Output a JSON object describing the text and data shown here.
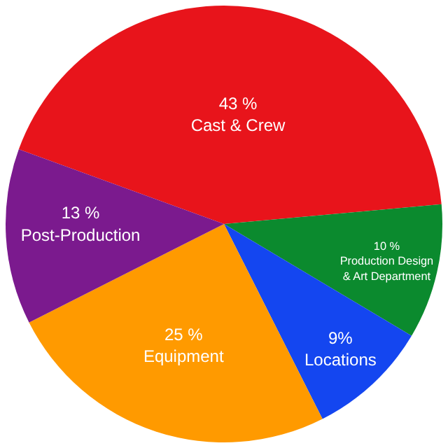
{
  "chart_data": {
    "type": "pie",
    "categories": [
      "Cast & Crew",
      "Production Design & Art Department",
      "Locations",
      "Equipment",
      "Post-Production"
    ],
    "values": [
      43,
      10,
      9,
      25,
      13
    ],
    "value_labels": [
      "43 %",
      "10 %",
      "9%",
      "25 %",
      "13 %"
    ],
    "colors": [
      "#e8141b",
      "#0b8a2e",
      "#1446f0",
      "#ff9a00",
      "#7b1a8e"
    ],
    "legend": false
  }
}
